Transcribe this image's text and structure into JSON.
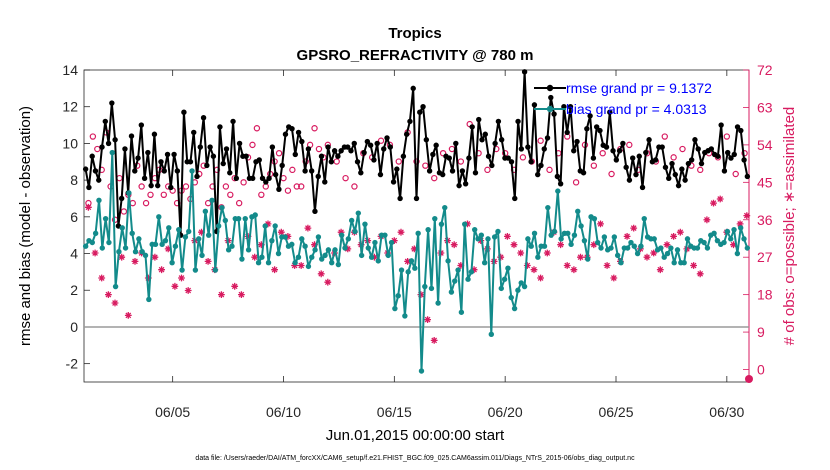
{
  "chart_data": {
    "type": "line",
    "title": "Tropics",
    "subtitle": "GPSRO_REFRACTIVITY @ 780 m",
    "xlabel": "Jun.01,2015 00:00:00 start",
    "ylabel": "rmse and bias (model - observation)",
    "ylabel_right": "# of obs: o=possible; ∗=assimilated",
    "footnote": "data file: /Users/raeder/DAI/ATM_forcXX/CAM6_setup/f.e21.FHIST_BGC.f09_025.CAM6assim.011/Diags_NTrS_2015-06/obs_diag_output.nc",
    "xlim": [
      1.0,
      31.0
    ],
    "ylim": [
      -3,
      14
    ],
    "ylim_right": [
      -3,
      72
    ],
    "x_ticks": [
      5,
      10,
      15,
      20,
      25,
      30
    ],
    "x_tick_labels": [
      "06/05",
      "06/10",
      "06/15",
      "06/20",
      "06/25",
      "06/30"
    ],
    "y_ticks": [
      -2,
      0,
      2,
      4,
      6,
      8,
      10,
      12,
      14
    ],
    "y_tick_labels": [
      "-2",
      "0",
      "2",
      "4",
      "6",
      "8",
      "10",
      "12",
      "14"
    ],
    "y_ticks_right": [
      0,
      9,
      18,
      27,
      36,
      45,
      54,
      63,
      72
    ],
    "y_tick_labels_right": [
      "0",
      "9",
      "18",
      "27",
      "36",
      "45",
      "54",
      "63",
      "72"
    ],
    "zero_line": 0,
    "colors": {
      "rmse": "#000000",
      "bias": "#138b8b",
      "obs": "#d81b60",
      "legend_text": "#0000ff",
      "right_axis": "#d81b60"
    },
    "legend": [
      {
        "label": "rmse grand pr = 9.1372",
        "color": "#000000"
      },
      {
        "label": "bias grand pr = 4.0313",
        "color": "#138b8b"
      }
    ],
    "series": [
      {
        "name": "rmse",
        "values": [
          8.6,
          7.6,
          9.3,
          8.5,
          8.0,
          9.8,
          11.2,
          10.0,
          12.2,
          10.2,
          5.5,
          7.0,
          9.7,
          7.3,
          10.4,
          8.5,
          9.2,
          11.0,
          8.1,
          9.5,
          7.7,
          10.5,
          7.7,
          9.0,
          8.5,
          9.4,
          7.6,
          9.4,
          8.5,
          5.0,
          11.7,
          9.0,
          9.0,
          10.6,
          8.2,
          9.8,
          11.4,
          8.8,
          9.8,
          9.3,
          5.2,
          10.9,
          8.9,
          9.7,
          8.4,
          11.2,
          8.1,
          10.0,
          9.3,
          9.3,
          8.1,
          8.1,
          9.0,
          9.1,
          8.1,
          7.9,
          8.1,
          9.8,
          8.3,
          7.5,
          8.8,
          10.5,
          10.9,
          10.8,
          9.4,
          10.6,
          10.1,
          8.5,
          9.7,
          8.5,
          6.3,
          8.2,
          9.3,
          7.9,
          9.8,
          9.0,
          9.6,
          9.3,
          9.6,
          9.8,
          9.8,
          9.6,
          10.0,
          9.0,
          8.4,
          9.5,
          10.1,
          9.9,
          9.1,
          10.0,
          8.3,
          9.7,
          10.3,
          9.8,
          7.9,
          8.6,
          7.0,
          9.3,
          10.5,
          11.2,
          13.0,
          7.0,
          11.7,
          12.0,
          10.2,
          8.5,
          9.4,
          9.9,
          8.4,
          8.3,
          9.3,
          9.2,
          8.5,
          10.0,
          7.7,
          8.5,
          7.8,
          9.2,
          10.9,
          8.4,
          11.3,
          10.2,
          10.5,
          9.3,
          8.8,
          10.0,
          11.2,
          10.2,
          9.2,
          9.2,
          9.0,
          7.0,
          11.2,
          9.7,
          13.9,
          9.8,
          9.0,
          12.1,
          8.3,
          8.8,
          9.7,
          10.3,
          12.5,
          11.6,
          8.2,
          7.8,
          12.0,
          10.6,
          12.0,
          9.6,
          10.1,
          8.5,
          8.4,
          10.8,
          11.5,
          9.2,
          10.9,
          10.7,
          9.9,
          9.8,
          11.7,
          9.6,
          9.1,
          9.6,
          10.0,
          8.7,
          8.0,
          9.2,
          8.3,
          9.3,
          7.6,
          9.5,
          10.2,
          9.0,
          9.1,
          9.8,
          9.8,
          8.7,
          8.1,
          8.9,
          8.3,
          7.7,
          8.6,
          8.0,
          8.9,
          9.1,
          10.2,
          9.7,
          8.9,
          9.5,
          9.6,
          9.7,
          9.4,
          9.3,
          11.0,
          8.5,
          9.5,
          9.2,
          9.4,
          10.9,
          10.7,
          9.1,
          8.2
        ]
      },
      {
        "name": "bias",
        "values": [
          4.4,
          4.7,
          4.6,
          5.1,
          6.9,
          4.3,
          5.9,
          4.6,
          9.5,
          2.2,
          4.1,
          5.4,
          4.3,
          7.3,
          5.1,
          4.1,
          4.8,
          4.1,
          3.9,
          1.5,
          4.5,
          4.5,
          6.0,
          4.5,
          4.7,
          5.4,
          3.5,
          4.4,
          5.3,
          3.1,
          4.9,
          5.2,
          8.5,
          3.1,
          4.8,
          3.9,
          6.3,
          5.0,
          6.9,
          3.1,
          5.5,
          6.5,
          5.8,
          4.2,
          4.4,
          5.9,
          5.9,
          3.7,
          5.9,
          4.2,
          6.0,
          6.1,
          3.5,
          3.8,
          5.5,
          3.5,
          4.7,
          5.5,
          4.0,
          4.9,
          4.9,
          4.4,
          4.5,
          3.5,
          3.8,
          4.8,
          4.4,
          3.3,
          3.8,
          4.2,
          4.9,
          3.7,
          3.9,
          4.2,
          3.5,
          4.2,
          3.4,
          5.0,
          4.3,
          4.8,
          5.8,
          5.2,
          6.2,
          3.9,
          5.6,
          4.3,
          3.8,
          4.6,
          3.6,
          5.0,
          5.0,
          3.9,
          4.6,
          1.0,
          1.7,
          3.1,
          0.6,
          3.0,
          3.6,
          3.2,
          5.1,
          -2.4,
          2.2,
          5.3,
          2.1,
          5.9,
          1.3,
          5.6,
          6.5,
          3.6,
          1.9,
          2.5,
          3.1,
          0.8,
          5.6,
          2.6,
          3.0,
          5.3,
          4.8,
          5.0,
          3.5,
          4.8,
          -0.4,
          4.9,
          5.2,
          2.1,
          2.6,
          3.2,
          1.6,
          1.0,
          2.0,
          2.4,
          2.2,
          4.8,
          4.4,
          5.1,
          3.8,
          4.4,
          4.4,
          6.5,
          5.0,
          5.2,
          7.4,
          4.8,
          5.1,
          5.1,
          4.5,
          5.0,
          6.3,
          5.5,
          4.7,
          3.7,
          6.0,
          5.9,
          4.6,
          4.3,
          4.9,
          4.2,
          4.3,
          4.9,
          3.9,
          3.5,
          4.3,
          4.3,
          4.6,
          4.4,
          4.0,
          4.4,
          5.9,
          4.9,
          4.8,
          4.8,
          4.2,
          4.3,
          3.8,
          4.0,
          4.3,
          3.5,
          4.2,
          3.5,
          3.5,
          4.8,
          4.4,
          4.3,
          4.3,
          4.7,
          4.6,
          4.3,
          5.0,
          5.1,
          4.7,
          4.5,
          4.6,
          5.2,
          4.8,
          5.3,
          4.0,
          5.4,
          4.8,
          4.3
        ]
      },
      {
        "name": "possible",
        "x": [
          1.2,
          1.4,
          1.6,
          1.8,
          2.0,
          2.2,
          2.4,
          2.6,
          2.8,
          3.0,
          3.2,
          3.4,
          3.6,
          3.8,
          4.0,
          4.2,
          4.4,
          4.6,
          4.8,
          5.0,
          5.2,
          5.4,
          5.6,
          5.8,
          6.0,
          6.2,
          6.4,
          6.6,
          6.8,
          7.0,
          7.2,
          7.4,
          7.6,
          7.8,
          8.0,
          8.2,
          8.4,
          8.6,
          8.8,
          9.0,
          9.2,
          9.4,
          9.6,
          9.8,
          10.0,
          10.2,
          10.4,
          10.6,
          10.8,
          11.0,
          11.2,
          11.4,
          11.6,
          11.8,
          12.0,
          12.4,
          12.8,
          13.2,
          13.6,
          14.0,
          14.4,
          14.8,
          15.2,
          15.6,
          16.0,
          16.4,
          16.8,
          17.2,
          17.6,
          18.0,
          18.4,
          18.8,
          19.2,
          19.6,
          20.0,
          20.4,
          20.8,
          21.2,
          21.6,
          22.0,
          22.4,
          22.8,
          23.2,
          23.6,
          24.0,
          24.4,
          24.8,
          25.2,
          25.6,
          26.0,
          26.4,
          26.8,
          27.2,
          27.6,
          28.0,
          28.4,
          28.8,
          29.2,
          29.6,
          30.0,
          30.4,
          30.8
        ],
        "values": [
          40,
          56,
          53,
          48,
          57,
          44,
          36,
          46,
          38,
          42,
          40,
          49,
          44,
          40,
          42,
          46,
          48,
          42,
          44,
          43,
          40,
          43,
          44,
          41,
          45,
          47,
          49,
          40,
          44,
          48,
          39,
          44,
          42,
          46,
          40,
          45,
          51,
          54,
          58,
          42,
          44,
          47,
          50,
          52,
          46,
          43,
          48,
          44,
          44,
          50,
          54,
          58,
          53,
          51,
          54,
          50,
          46,
          44,
          52,
          51,
          55,
          54,
          50,
          57,
          50,
          49,
          46,
          52,
          53,
          50,
          59,
          52,
          48,
          53,
          52,
          48,
          51,
          50,
          55,
          48,
          52,
          56,
          45,
          54,
          49,
          52,
          47,
          53,
          54,
          48,
          52,
          50,
          56,
          51,
          53,
          49,
          48,
          52,
          51,
          56,
          47,
          52
        ]
      },
      {
        "name": "assimilated",
        "x": [
          1.2,
          1.5,
          1.8,
          2.1,
          2.4,
          2.7,
          3.0,
          3.3,
          3.6,
          3.9,
          4.2,
          4.5,
          4.8,
          5.1,
          5.4,
          5.7,
          6.0,
          6.3,
          6.6,
          6.9,
          7.2,
          7.5,
          7.8,
          8.1,
          8.4,
          8.7,
          9.0,
          9.3,
          9.6,
          9.9,
          10.2,
          10.5,
          10.8,
          11.1,
          11.4,
          11.7,
          12.0,
          12.3,
          12.6,
          12.9,
          13.2,
          13.5,
          13.8,
          14.1,
          14.4,
          14.7,
          15.0,
          15.3,
          15.6,
          15.9,
          16.2,
          16.5,
          16.8,
          17.1,
          17.4,
          17.7,
          18.0,
          18.3,
          18.6,
          18.9,
          19.2,
          19.5,
          19.8,
          20.1,
          20.4,
          20.7,
          21.0,
          21.3,
          21.6,
          21.9,
          22.2,
          22.5,
          22.8,
          23.1,
          23.4,
          23.7,
          24.0,
          24.3,
          24.6,
          24.9,
          25.2,
          25.5,
          25.8,
          26.1,
          26.4,
          26.7,
          27.0,
          27.3,
          27.6,
          27.9,
          28.2,
          28.5,
          28.8,
          29.1,
          29.4,
          29.7,
          30.0,
          30.3,
          30.6,
          30.9
        ],
        "values": [
          39,
          28,
          22,
          18,
          16,
          27,
          13,
          26,
          28,
          22,
          27,
          24,
          29,
          20,
          22,
          19,
          31,
          33,
          26,
          24,
          18,
          31,
          20,
          18,
          32,
          27,
          30,
          35,
          24,
          33,
          32,
          25,
          25,
          34,
          30,
          23,
          21,
          28,
          33,
          29,
          33,
          30,
          31,
          27,
          32,
          28,
          31,
          33,
          26,
          29,
          18,
          12,
          7,
          28,
          31,
          30,
          25,
          35,
          24,
          31,
          29,
          26,
          27,
          32,
          30,
          28,
          25,
          24,
          22,
          28,
          33,
          30,
          25,
          24,
          27,
          27,
          30,
          35,
          25,
          22,
          26,
          32,
          34,
          29,
          27,
          28,
          24,
          30,
          32,
          33,
          29,
          25,
          23,
          36,
          40,
          41,
          33,
          30,
          35,
          37
        ]
      }
    ]
  }
}
